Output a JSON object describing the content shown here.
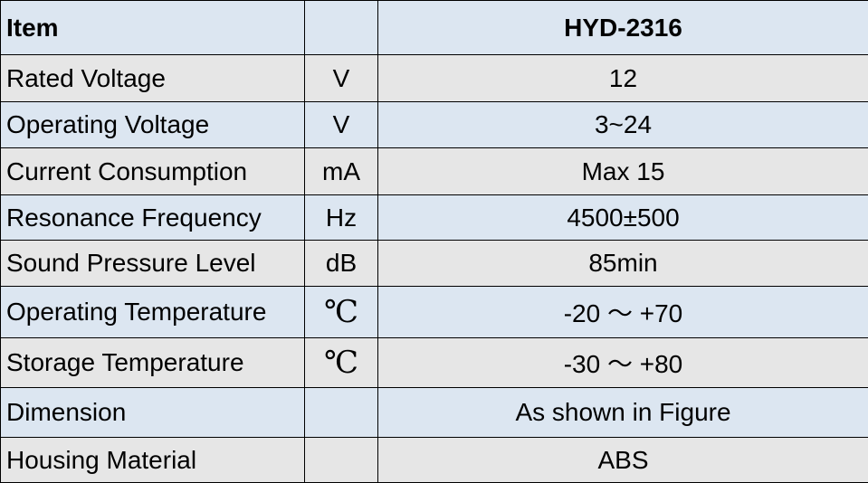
{
  "table": {
    "header": {
      "item": "Item",
      "model": "HYD-2316"
    },
    "rows": [
      {
        "label": "Rated Voltage",
        "unit": "V",
        "value": "12"
      },
      {
        "label": "Operating Voltage",
        "unit": "V",
        "value": "3~24"
      },
      {
        "label": "Current Consumption",
        "unit": "mA",
        "value": "Max 15"
      },
      {
        "label": "Resonance Frequency",
        "unit": "Hz",
        "value": "4500±500"
      },
      {
        "label": "Sound Pressure Level",
        "unit": "dB",
        "value": "85min"
      },
      {
        "label": "Operating Temperature",
        "unit": "℃",
        "value": "-20 ～ +70"
      },
      {
        "label": "Storage Temperature",
        "unit": "℃",
        "value": "-30 ～ +80"
      },
      {
        "label": "Dimension",
        "value": "As shown in Figure"
      },
      {
        "label": "Housing Material",
        "value": "ABS"
      }
    ]
  }
}
